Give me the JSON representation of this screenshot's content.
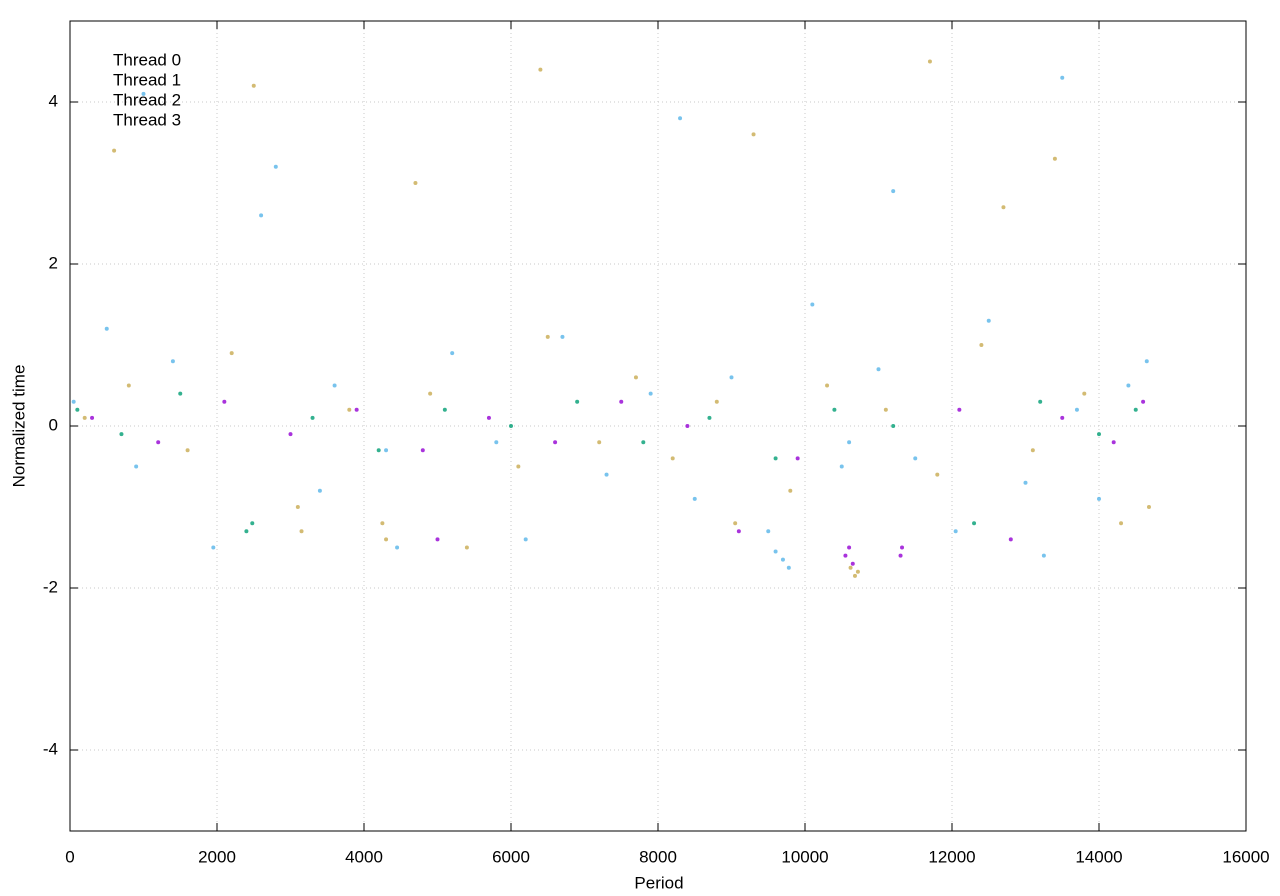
{
  "chart_data": {
    "type": "scatter",
    "x_label": "Period",
    "y_label": "Normalized time",
    "xlim": [
      0,
      16000
    ],
    "xticks": [
      0,
      2000,
      4000,
      6000,
      8000,
      10000,
      12000,
      14000,
      16000
    ],
    "ylim": [
      -5,
      5
    ],
    "yticks": [
      -4,
      -2,
      0,
      2,
      4
    ],
    "grid": true,
    "legend": "top-left",
    "series": [
      {
        "name": "Thread 0",
        "color": "#9400d3",
        "x": [
          300,
          1200,
          2100,
          3000,
          3900,
          4800,
          5000,
          5700,
          6600,
          7500,
          8400,
          9100,
          9900,
          10550,
          10600,
          10650,
          11300,
          11320,
          12100,
          12800,
          13500,
          14200,
          14600
        ],
        "values": [
          0.1,
          -0.2,
          0.3,
          -0.1,
          0.2,
          -0.3,
          -1.4,
          0.1,
          -0.2,
          0.3,
          0.0,
          -1.3,
          -0.4,
          -1.6,
          -1.5,
          -1.7,
          -1.6,
          -1.5,
          0.2,
          -1.4,
          0.1,
          -0.2,
          0.3
        ]
      },
      {
        "name": "Thread 1",
        "color": "#009e73",
        "x": [
          100,
          700,
          1500,
          2400,
          2480,
          3300,
          4200,
          5100,
          6000,
          6900,
          7800,
          8700,
          9600,
          10400,
          11200,
          12300,
          13200,
          14000,
          14500
        ],
        "values": [
          0.2,
          -0.1,
          0.4,
          -1.3,
          -1.2,
          0.1,
          -0.3,
          0.2,
          0.0,
          0.3,
          -0.2,
          0.1,
          -0.4,
          0.2,
          0.0,
          -1.2,
          0.3,
          -0.1,
          0.2
        ]
      },
      {
        "name": "Thread 2",
        "color": "#56b4e9",
        "x": [
          50,
          500,
          900,
          1400,
          1950,
          2600,
          3400,
          3600,
          4300,
          4450,
          5200,
          5800,
          6200,
          6700,
          7300,
          7900,
          8500,
          9000,
          9500,
          9600,
          9700,
          9780,
          10100,
          10500,
          10600,
          11000,
          11500,
          12050,
          12500,
          13000,
          13250,
          13700,
          14000,
          14400,
          14650,
          1000,
          2800,
          8300,
          11200,
          13500
        ],
        "values": [
          0.3,
          1.2,
          -0.5,
          0.8,
          -1.5,
          2.6,
          -0.8,
          0.5,
          -0.3,
          -1.5,
          0.9,
          -0.2,
          -1.4,
          1.1,
          -0.6,
          0.4,
          -0.9,
          0.6,
          -1.3,
          -1.55,
          -1.65,
          -1.75,
          1.5,
          -0.5,
          -0.2,
          0.7,
          -0.4,
          -1.3,
          1.3,
          -0.7,
          -1.6,
          0.2,
          -0.9,
          0.5,
          0.8,
          4.1,
          3.2,
          3.8,
          2.9,
          4.3
        ]
      },
      {
        "name": "Thread 3",
        "color": "#c8aa50",
        "x": [
          200,
          800,
          1600,
          2200,
          3100,
          3150,
          3800,
          4250,
          4300,
          4900,
          5400,
          6100,
          6500,
          7200,
          7700,
          8200,
          8800,
          9050,
          9800,
          10300,
          10620,
          10680,
          10720,
          11100,
          11800,
          12400,
          13100,
          13800,
          14300,
          14680,
          600,
          2500,
          4700,
          6400,
          9300,
          11700,
          12700,
          13400
        ],
        "values": [
          0.1,
          0.5,
          -0.3,
          0.9,
          -1.0,
          -1.3,
          0.2,
          -1.2,
          -1.4,
          0.4,
          -1.5,
          -0.5,
          1.1,
          -0.2,
          0.6,
          -0.4,
          0.3,
          -1.2,
          -0.8,
          0.5,
          -1.75,
          -1.85,
          -1.8,
          0.2,
          -0.6,
          1.0,
          -0.3,
          0.4,
          -1.2,
          -1.0,
          3.4,
          4.2,
          3.0,
          4.4,
          3.6,
          4.5,
          2.7,
          3.3
        ]
      }
    ]
  }
}
